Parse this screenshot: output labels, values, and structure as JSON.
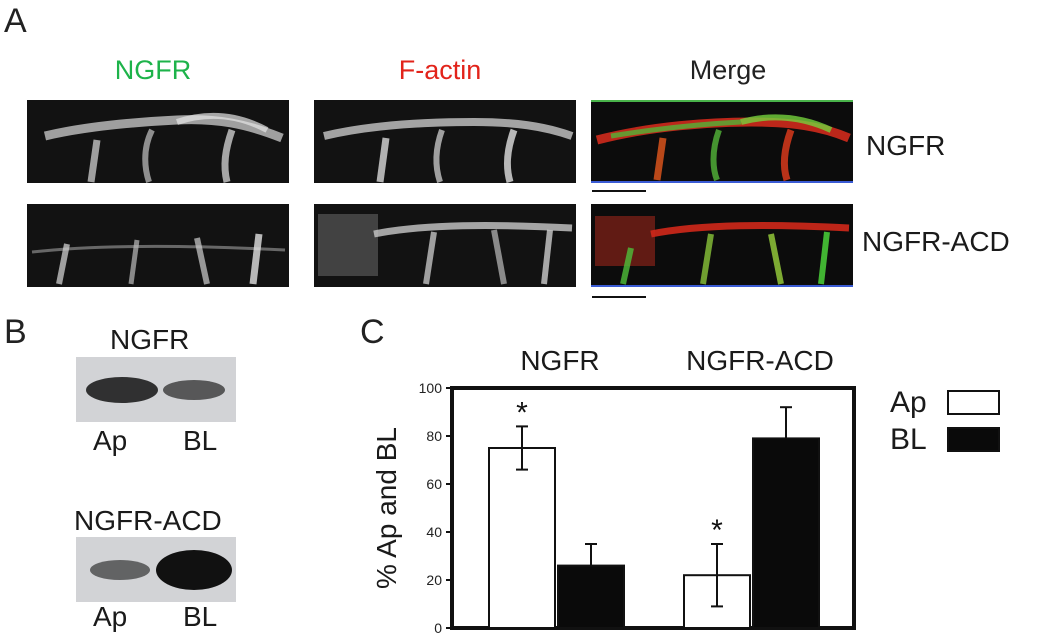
{
  "panels": {
    "a": {
      "letter": "A"
    },
    "b": {
      "letter": "B"
    },
    "c": {
      "letter": "C"
    }
  },
  "panelA": {
    "column_titles": [
      "NGFR",
      "F-actin",
      "Merge"
    ],
    "column_colors": [
      "#1db34a",
      "#e2231a",
      "#222222"
    ],
    "row_labels": [
      "NGFR",
      "NGFR-ACD"
    ]
  },
  "panelB": {
    "blots": [
      {
        "title": "NGFR",
        "lanes": [
          "Ap",
          "BL"
        ],
        "band_intensity": [
          0.75,
          0.45
        ]
      },
      {
        "title": "NGFR-ACD",
        "lanes": [
          "Ap",
          "BL"
        ],
        "band_intensity": [
          0.35,
          1.0
        ]
      }
    ]
  },
  "chart_data": {
    "type": "bar",
    "categories": [
      "NGFR",
      "NGFR-ACD"
    ],
    "series": [
      {
        "name": "Ap",
        "values": [
          75,
          22
        ],
        "errors": [
          9,
          13
        ],
        "fill": "#ffffff",
        "significant": [
          "*",
          "*"
        ]
      },
      {
        "name": "BL",
        "values": [
          26,
          79
        ],
        "errors": [
          9,
          13
        ],
        "fill": "#0a0a0a",
        "significant": [
          "",
          ""
        ]
      }
    ],
    "ylabel": "% Ap and BL",
    "ylim": [
      0,
      100
    ],
    "yticks": [
      "0",
      "20",
      "40",
      "60",
      "80",
      "100"
    ],
    "legend_placement": "right",
    "grid": false
  }
}
